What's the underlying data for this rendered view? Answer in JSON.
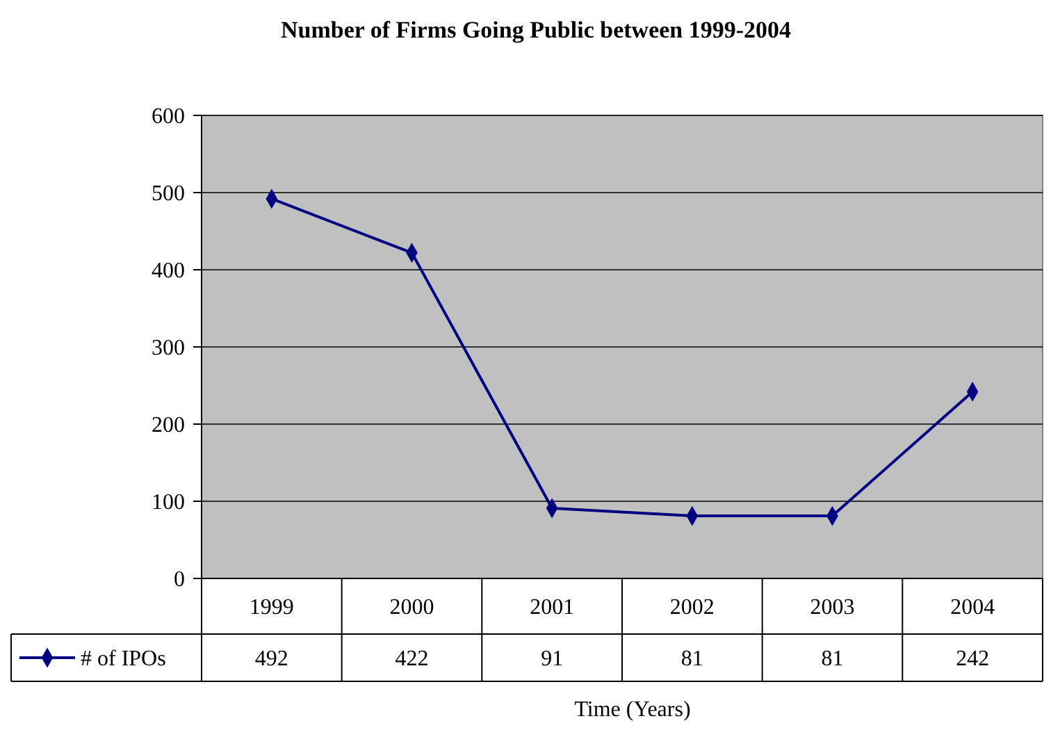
{
  "chart_data": {
    "type": "line",
    "title": "Number of Firms Going Public between 1999-2004",
    "xlabel": "Time (Years)",
    "categories": [
      "1999",
      "2000",
      "2001",
      "2002",
      "2003",
      "2004"
    ],
    "series": [
      {
        "name": "# of IPOs",
        "color": "#000080",
        "values": [
          492,
          422,
          91,
          81,
          81,
          242
        ]
      }
    ],
    "ylim": [
      0,
      600
    ],
    "yticks": [
      0,
      100,
      200,
      300,
      400,
      500,
      600
    ],
    "grid": "y",
    "marker": "diamond",
    "data_labels": true,
    "legend": "bottom left"
  }
}
